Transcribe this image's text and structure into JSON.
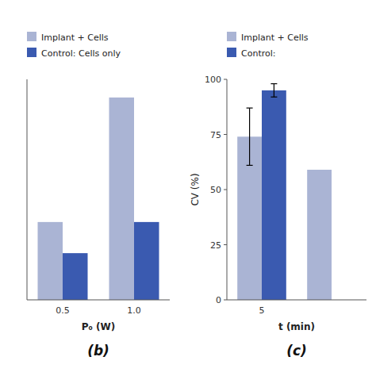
{
  "chart_data": [
    {
      "type": "bar",
      "title": "(b)",
      "x_label": "P₀ (W)",
      "categories": [
        "0.5",
        "1.0"
      ],
      "series": [
        {
          "name": "Implant + Cells",
          "color": "#aab4d4",
          "values": [
            30,
            78
          ]
        },
        {
          "name": "Control: Cells only",
          "color": "#3a5ab0",
          "values": [
            18,
            30
          ]
        }
      ],
      "ylim": [
        0,
        85
      ],
      "tick_labels": "x"
    },
    {
      "type": "bar",
      "title": "(c)",
      "x_label": "t (min)",
      "y_label": "CV (%)",
      "categories": [
        "5",
        null
      ],
      "series": [
        {
          "name": "Implant + Cells",
          "color": "#aab4d4",
          "values": [
            74,
            59
          ],
          "errors": [
            13,
            0
          ]
        },
        {
          "name": "Control:",
          "color": "#3a5ab0",
          "values": [
            95,
            0
          ],
          "errors": [
            3,
            0
          ]
        }
      ],
      "ylim": [
        0,
        100
      ],
      "yticks": [
        0,
        25,
        50,
        75,
        100
      ]
    }
  ]
}
